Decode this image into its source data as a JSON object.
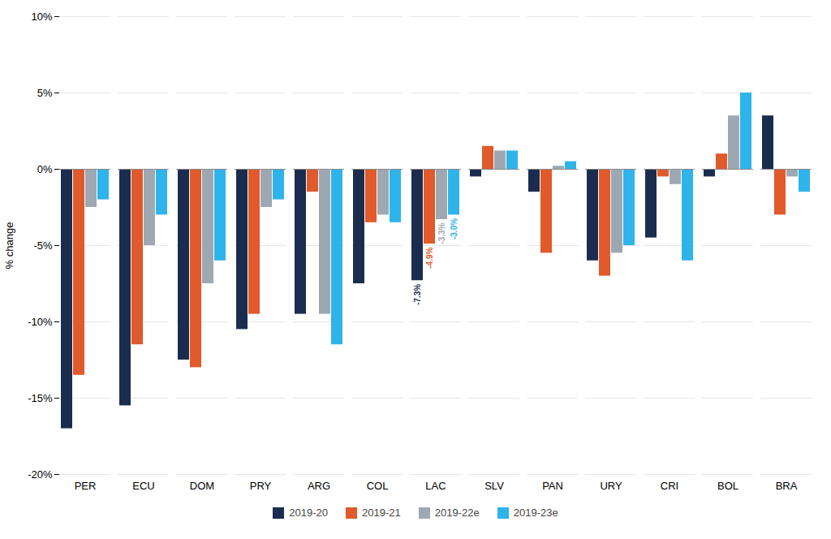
{
  "chart_data": {
    "type": "bar",
    "categories": [
      "PER",
      "ECU",
      "DOM",
      "PRY",
      "ARG",
      "COL",
      "LAC",
      "SLV",
      "PAN",
      "URY",
      "CRI",
      "BOL",
      "BRA"
    ],
    "series": [
      {
        "name": "2019-20",
        "color": "#1b2d4f",
        "values": [
          -17.0,
          -15.5,
          -12.5,
          -10.5,
          -9.5,
          -7.5,
          -7.3,
          -0.5,
          -1.5,
          -6.0,
          -4.5,
          -0.5,
          3.5
        ]
      },
      {
        "name": "2019-21",
        "color": "#e05a2b",
        "values": [
          -13.5,
          -11.5,
          -13.0,
          -9.5,
          -1.5,
          -3.5,
          -4.9,
          1.5,
          -5.5,
          -7.0,
          -0.5,
          1.0,
          -3.0
        ]
      },
      {
        "name": "2019-22e",
        "color": "#9ea8b3",
        "values": [
          -2.5,
          -5.0,
          -7.5,
          -2.5,
          -9.5,
          -3.0,
          -3.3,
          1.2,
          0.2,
          -5.5,
          -1.0,
          3.5,
          -0.5
        ]
      },
      {
        "name": "2019-23e",
        "color": "#2eb4ea",
        "values": [
          -2.0,
          -3.0,
          -6.0,
          -2.0,
          -11.5,
          -3.5,
          -3.0,
          1.2,
          0.5,
          -5.0,
          -6.0,
          5.0,
          -1.5
        ]
      }
    ],
    "annotations": [
      {
        "category": "LAC",
        "series": "2019-20",
        "value": -7.3,
        "label": "-7.3%",
        "color": "#1b2d4f"
      },
      {
        "category": "LAC",
        "series": "2019-21",
        "value": -4.9,
        "label": "-4.9%",
        "color": "#e05a2b"
      },
      {
        "category": "LAC",
        "series": "2019-22e",
        "value": -3.3,
        "label": "-3.3%",
        "color": "#9ea8b3"
      },
      {
        "category": "LAC",
        "series": "2019-23e",
        "value": -3.0,
        "label": "-3.0%",
        "color": "#2eb4ea"
      }
    ],
    "ylabel": "% change",
    "ylim": [
      -20,
      10
    ],
    "yticks": [
      {
        "value": -20,
        "label": "-20%"
      },
      {
        "value": -15,
        "label": "-15%"
      },
      {
        "value": -10,
        "label": "-10%"
      },
      {
        "value": -5,
        "label": "-5%"
      },
      {
        "value": 0,
        "label": "0%"
      },
      {
        "value": 5,
        "label": "5%"
      },
      {
        "value": 10,
        "label": "10%"
      }
    ],
    "grid": true,
    "legend": "bottom"
  }
}
